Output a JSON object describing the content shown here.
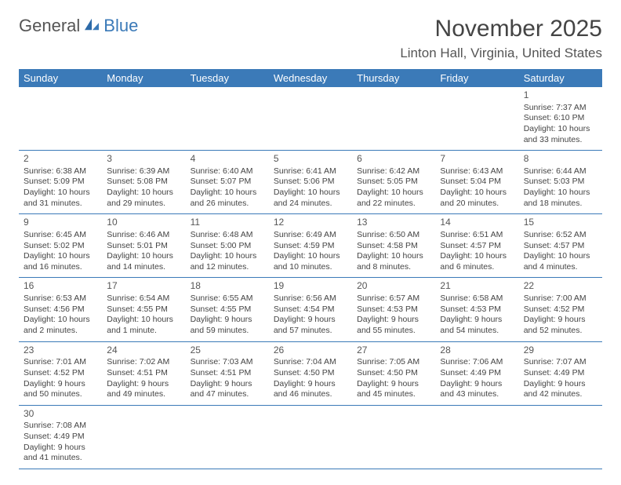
{
  "logo": {
    "text1": "General",
    "text2": "Blue"
  },
  "title": {
    "month": "November 2025",
    "location": "Linton Hall, Virginia, United States"
  },
  "colors": {
    "header_bg": "#3b7ab8",
    "header_fg": "#ffffff",
    "row_divider": "#3b7ab8",
    "cell_divider": "#bbbbbb",
    "text": "#444444"
  },
  "weekday_headers": [
    "Sunday",
    "Monday",
    "Tuesday",
    "Wednesday",
    "Thursday",
    "Friday",
    "Saturday"
  ],
  "weeks": [
    [
      null,
      null,
      null,
      null,
      null,
      null,
      {
        "d": "1",
        "sr": "Sunrise: 7:37 AM",
        "ss": "Sunset: 6:10 PM",
        "dl": "Daylight: 10 hours and 33 minutes."
      }
    ],
    [
      {
        "d": "2",
        "sr": "Sunrise: 6:38 AM",
        "ss": "Sunset: 5:09 PM",
        "dl": "Daylight: 10 hours and 31 minutes."
      },
      {
        "d": "3",
        "sr": "Sunrise: 6:39 AM",
        "ss": "Sunset: 5:08 PM",
        "dl": "Daylight: 10 hours and 29 minutes."
      },
      {
        "d": "4",
        "sr": "Sunrise: 6:40 AM",
        "ss": "Sunset: 5:07 PM",
        "dl": "Daylight: 10 hours and 26 minutes."
      },
      {
        "d": "5",
        "sr": "Sunrise: 6:41 AM",
        "ss": "Sunset: 5:06 PM",
        "dl": "Daylight: 10 hours and 24 minutes."
      },
      {
        "d": "6",
        "sr": "Sunrise: 6:42 AM",
        "ss": "Sunset: 5:05 PM",
        "dl": "Daylight: 10 hours and 22 minutes."
      },
      {
        "d": "7",
        "sr": "Sunrise: 6:43 AM",
        "ss": "Sunset: 5:04 PM",
        "dl": "Daylight: 10 hours and 20 minutes."
      },
      {
        "d": "8",
        "sr": "Sunrise: 6:44 AM",
        "ss": "Sunset: 5:03 PM",
        "dl": "Daylight: 10 hours and 18 minutes."
      }
    ],
    [
      {
        "d": "9",
        "sr": "Sunrise: 6:45 AM",
        "ss": "Sunset: 5:02 PM",
        "dl": "Daylight: 10 hours and 16 minutes."
      },
      {
        "d": "10",
        "sr": "Sunrise: 6:46 AM",
        "ss": "Sunset: 5:01 PM",
        "dl": "Daylight: 10 hours and 14 minutes."
      },
      {
        "d": "11",
        "sr": "Sunrise: 6:48 AM",
        "ss": "Sunset: 5:00 PM",
        "dl": "Daylight: 10 hours and 12 minutes."
      },
      {
        "d": "12",
        "sr": "Sunrise: 6:49 AM",
        "ss": "Sunset: 4:59 PM",
        "dl": "Daylight: 10 hours and 10 minutes."
      },
      {
        "d": "13",
        "sr": "Sunrise: 6:50 AM",
        "ss": "Sunset: 4:58 PM",
        "dl": "Daylight: 10 hours and 8 minutes."
      },
      {
        "d": "14",
        "sr": "Sunrise: 6:51 AM",
        "ss": "Sunset: 4:57 PM",
        "dl": "Daylight: 10 hours and 6 minutes."
      },
      {
        "d": "15",
        "sr": "Sunrise: 6:52 AM",
        "ss": "Sunset: 4:57 PM",
        "dl": "Daylight: 10 hours and 4 minutes."
      }
    ],
    [
      {
        "d": "16",
        "sr": "Sunrise: 6:53 AM",
        "ss": "Sunset: 4:56 PM",
        "dl": "Daylight: 10 hours and 2 minutes."
      },
      {
        "d": "17",
        "sr": "Sunrise: 6:54 AM",
        "ss": "Sunset: 4:55 PM",
        "dl": "Daylight: 10 hours and 1 minute."
      },
      {
        "d": "18",
        "sr": "Sunrise: 6:55 AM",
        "ss": "Sunset: 4:55 PM",
        "dl": "Daylight: 9 hours and 59 minutes."
      },
      {
        "d": "19",
        "sr": "Sunrise: 6:56 AM",
        "ss": "Sunset: 4:54 PM",
        "dl": "Daylight: 9 hours and 57 minutes."
      },
      {
        "d": "20",
        "sr": "Sunrise: 6:57 AM",
        "ss": "Sunset: 4:53 PM",
        "dl": "Daylight: 9 hours and 55 minutes."
      },
      {
        "d": "21",
        "sr": "Sunrise: 6:58 AM",
        "ss": "Sunset: 4:53 PM",
        "dl": "Daylight: 9 hours and 54 minutes."
      },
      {
        "d": "22",
        "sr": "Sunrise: 7:00 AM",
        "ss": "Sunset: 4:52 PM",
        "dl": "Daylight: 9 hours and 52 minutes."
      }
    ],
    [
      {
        "d": "23",
        "sr": "Sunrise: 7:01 AM",
        "ss": "Sunset: 4:52 PM",
        "dl": "Daylight: 9 hours and 50 minutes."
      },
      {
        "d": "24",
        "sr": "Sunrise: 7:02 AM",
        "ss": "Sunset: 4:51 PM",
        "dl": "Daylight: 9 hours and 49 minutes."
      },
      {
        "d": "25",
        "sr": "Sunrise: 7:03 AM",
        "ss": "Sunset: 4:51 PM",
        "dl": "Daylight: 9 hours and 47 minutes."
      },
      {
        "d": "26",
        "sr": "Sunrise: 7:04 AM",
        "ss": "Sunset: 4:50 PM",
        "dl": "Daylight: 9 hours and 46 minutes."
      },
      {
        "d": "27",
        "sr": "Sunrise: 7:05 AM",
        "ss": "Sunset: 4:50 PM",
        "dl": "Daylight: 9 hours and 45 minutes."
      },
      {
        "d": "28",
        "sr": "Sunrise: 7:06 AM",
        "ss": "Sunset: 4:49 PM",
        "dl": "Daylight: 9 hours and 43 minutes."
      },
      {
        "d": "29",
        "sr": "Sunrise: 7:07 AM",
        "ss": "Sunset: 4:49 PM",
        "dl": "Daylight: 9 hours and 42 minutes."
      }
    ],
    [
      {
        "d": "30",
        "sr": "Sunrise: 7:08 AM",
        "ss": "Sunset: 4:49 PM",
        "dl": "Daylight: 9 hours and 41 minutes."
      },
      null,
      null,
      null,
      null,
      null,
      null
    ]
  ]
}
